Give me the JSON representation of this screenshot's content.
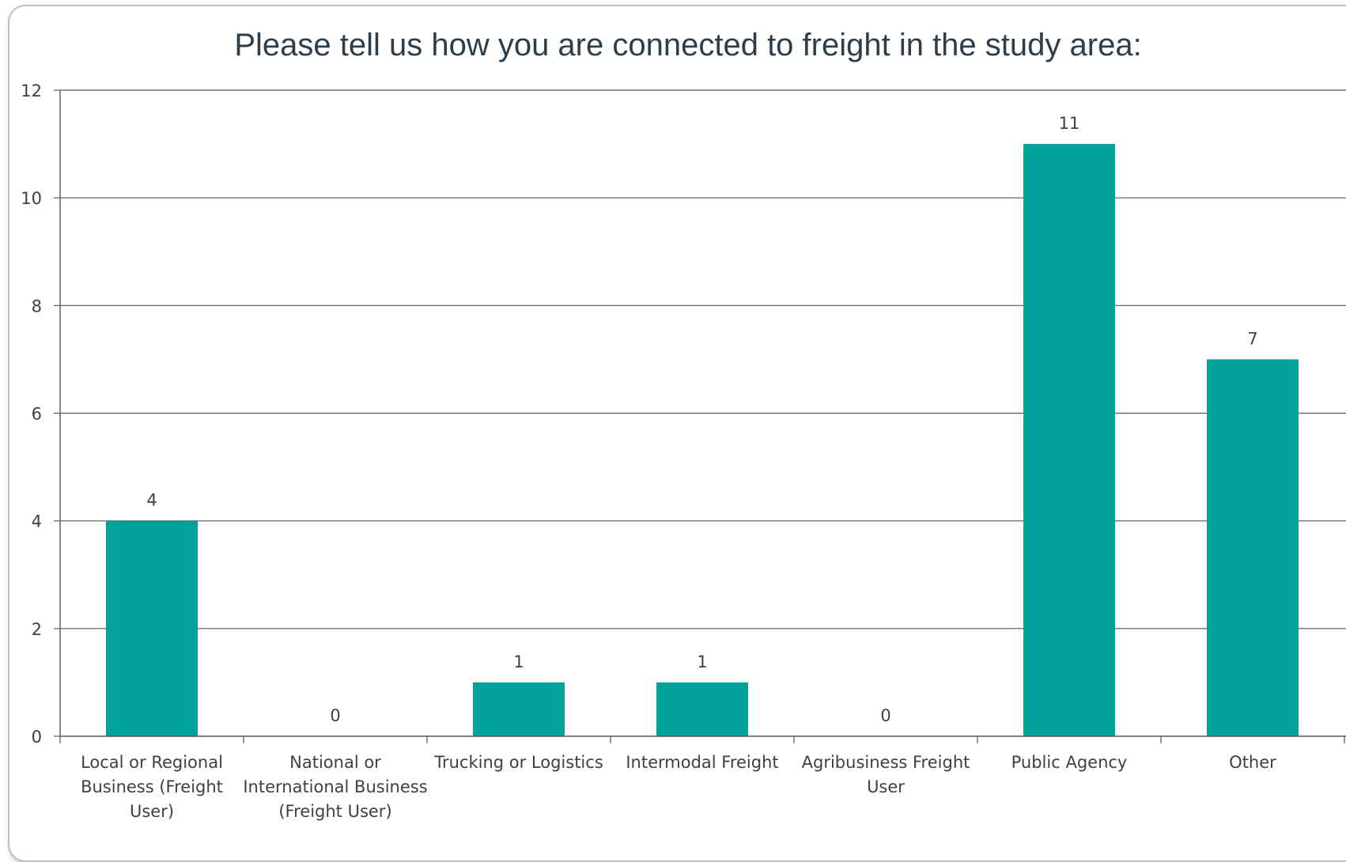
{
  "chart_data": {
    "type": "bar",
    "title": "Please tell us how you are connected to freight in the study area:",
    "categories": [
      [
        "Local or Regional",
        "Business (Freight",
        "User)"
      ],
      [
        "National or",
        "International Business",
        "(Freight User)"
      ],
      [
        "Trucking or Logistics"
      ],
      [
        "Intermodal Freight"
      ],
      [
        "Agribusiness Freight",
        "User"
      ],
      [
        "Public Agency"
      ],
      [
        "Other"
      ]
    ],
    "values": [
      4,
      0,
      1,
      1,
      0,
      11,
      7
    ],
    "ylim": [
      0,
      12
    ],
    "yticks": [
      "0",
      "2",
      "4",
      "6",
      "8",
      "10",
      "12"
    ],
    "grid": true,
    "data_labels": true,
    "bar_color": "#00a19a"
  }
}
